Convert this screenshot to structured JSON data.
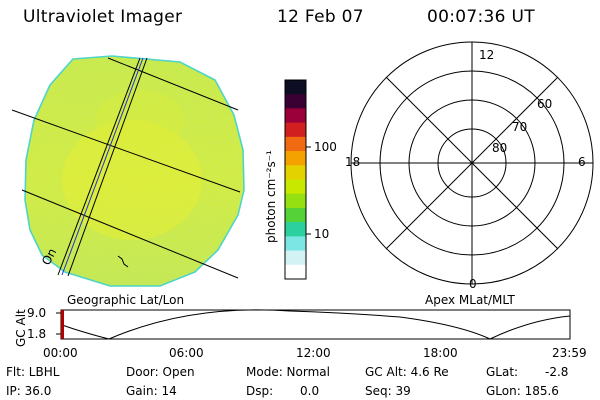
{
  "header": {
    "instrument": "Ultraviolet Imager",
    "date": "12 Feb 07",
    "time": "00:07:36 UT"
  },
  "colorbar": {
    "unit_label": "photon cm⁻²s⁻¹",
    "ticks": [
      "100",
      "10"
    ],
    "colors": [
      "#0d0d24",
      "#3b0033",
      "#9b003a",
      "#d11f1f",
      "#ef6a10",
      "#f4a200",
      "#e4d200",
      "#c8e800",
      "#94e010",
      "#55d238",
      "#2bd09e",
      "#7be6e4",
      "#d2f2f4",
      "#ffffff"
    ]
  },
  "left_panel": {
    "caption": "Geographic Lat/Lon",
    "limb_label": "On"
  },
  "right_panel": {
    "caption": "Apex MLat/MLT",
    "mlt_labels": {
      "top": "12",
      "left": "18",
      "right": "6",
      "bottom": "0"
    },
    "mlat_labels": [
      "60",
      "70",
      "80"
    ]
  },
  "altitude_plot": {
    "ylabel": "GC Alt",
    "y_ticks": [
      "9.0",
      "1.8"
    ],
    "x_ticks": [
      "00:00",
      "06:00",
      "12:00",
      "18:00",
      "23:59"
    ]
  },
  "status": {
    "flt": "Flt: LBHL",
    "ip": "IP: 36.0",
    "door": "Door: Open",
    "gain": "Gain: 14",
    "mode": "Mode: Normal",
    "dsp_label": "Dsp:",
    "dsp_value": "0.0",
    "gc_alt": "GC Alt: 4.6 Re",
    "seq": "Seq: 39",
    "glat_label": "GLat:",
    "glat_value": "-2.8",
    "glon": "GLon: 185.6"
  }
}
